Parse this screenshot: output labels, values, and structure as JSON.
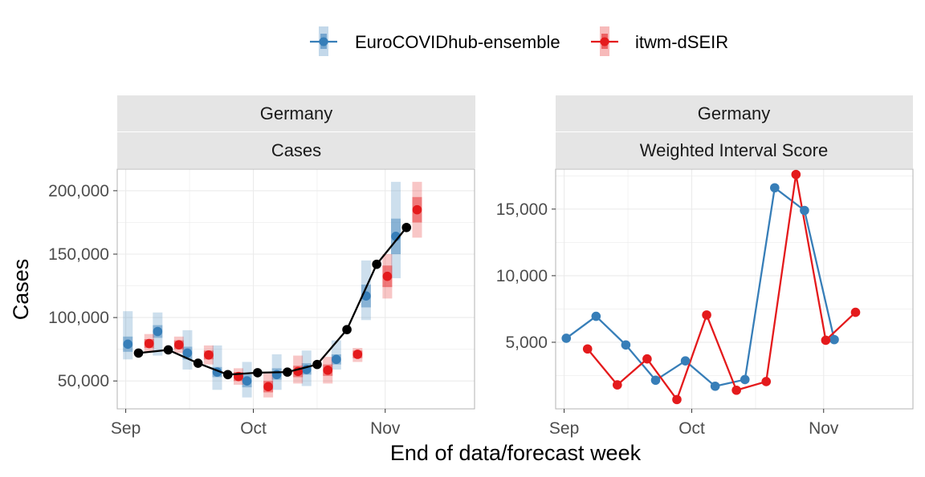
{
  "legend": {
    "items": [
      {
        "label": "EuroCOVIDhub-ensemble",
        "color": "#377eb8"
      },
      {
        "label": "itwm-dSEIR",
        "color": "#e41a1c"
      }
    ]
  },
  "x_axis_title": "End of data/forecast week",
  "chart_data": [
    {
      "type": "line",
      "panel": "left",
      "strip_labels": [
        "Germany",
        "Cases"
      ],
      "ylabel": "Cases",
      "xlabel": "End of data/forecast week",
      "xticks": [
        "Sep",
        "Oct",
        "Nov"
      ],
      "xlim": [
        "2021-08-30",
        "2021-11-22"
      ],
      "ylim": [
        28000,
        217000
      ],
      "yticks": [
        50000,
        100000,
        150000,
        200000
      ],
      "ytick_labels": [
        "50,000",
        "100,000",
        "150,000",
        "200,000"
      ],
      "grid": true,
      "observed": {
        "name": "",
        "color": "#000000",
        "x": [
          "2021-09-04",
          "2021-09-11",
          "2021-09-18",
          "2021-09-25",
          "2021-10-02",
          "2021-10-09",
          "2021-10-16",
          "2021-10-23",
          "2021-10-30",
          "2021-11-06"
        ],
        "values": [
          72000,
          74500,
          64000,
          55000,
          56500,
          57000,
          63000,
          90500,
          142000,
          171000
        ]
      },
      "series": [
        {
          "name": "EuroCOVIDhub-ensemble",
          "color": "#377eb8",
          "x": [
            "2021-09-04",
            "2021-09-11",
            "2021-09-18",
            "2021-09-25",
            "2021-10-02",
            "2021-10-09",
            "2021-10-16",
            "2021-10-23",
            "2021-10-30",
            "2021-11-06"
          ],
          "median": [
            79000,
            89000,
            72000,
            57000,
            50000,
            55000,
            59000,
            67000,
            117000,
            164000
          ],
          "q50": [
            [
              73000,
              85000
            ],
            [
              84000,
              94000
            ],
            [
              67000,
              77000
            ],
            [
              53000,
              61000
            ],
            [
              45000,
              55000
            ],
            [
              51000,
              60000
            ],
            [
              55000,
              64000
            ],
            [
              63000,
              71000
            ],
            [
              108000,
              126000
            ],
            [
              150000,
              178000
            ]
          ],
          "q90": [
            [
              67000,
              105000
            ],
            [
              70000,
              104000
            ],
            [
              59000,
              90000
            ],
            [
              43000,
              78000
            ],
            [
              37000,
              65000
            ],
            [
              43000,
              71000
            ],
            [
              46000,
              74000
            ],
            [
              59000,
              82000
            ],
            [
              98000,
              145000
            ],
            [
              131000,
              207000
            ]
          ]
        },
        {
          "name": "itwm-dSEIR",
          "color": "#e41a1c",
          "x": [
            "2021-09-04",
            "2021-09-11",
            "2021-09-18",
            "2021-09-25",
            "2021-10-02",
            "2021-10-09",
            "2021-10-16",
            "2021-10-23",
            "2021-10-30",
            "2021-11-06"
          ],
          "median": [
            79500,
            78500,
            70500,
            53500,
            45500,
            57500,
            58500,
            71000,
            132500,
            185000
          ],
          "q50": [
            [
              76000,
              83000
            ],
            [
              75000,
              82000
            ],
            [
              67000,
              74000
            ],
            [
              50000,
              57000
            ],
            [
              41000,
              50000
            ],
            [
              53000,
              62000
            ],
            [
              54000,
              63000
            ],
            [
              68000,
              74000
            ],
            [
              124000,
              141000
            ],
            [
              175000,
              195000
            ]
          ],
          "q90": [
            [
              73000,
              87000
            ],
            [
              72000,
              85000
            ],
            [
              63000,
              78000
            ],
            [
              47000,
              60000
            ],
            [
              37000,
              56000
            ],
            [
              48000,
              70000
            ],
            [
              48000,
              69000
            ],
            [
              65000,
              76000
            ],
            [
              115000,
              150000
            ],
            [
              163000,
              207000
            ]
          ]
        }
      ]
    },
    {
      "type": "line",
      "panel": "right",
      "strip_labels": [
        "Germany",
        "Weighted Interval Score"
      ],
      "ylabel": "",
      "xlabel": "End of data/forecast week",
      "xticks": [
        "Sep",
        "Oct",
        "Nov"
      ],
      "xlim": [
        "2021-08-30",
        "2021-11-22"
      ],
      "ylim": [
        0,
        18000
      ],
      "yticks": [
        5000,
        10000,
        15000
      ],
      "ytick_labels": [
        "5,000",
        "10,000",
        "15,000"
      ],
      "grid": true,
      "series": [
        {
          "name": "EuroCOVIDhub-ensemble",
          "color": "#377eb8",
          "x": [
            "2021-09-04",
            "2021-09-11",
            "2021-09-18",
            "2021-09-25",
            "2021-10-02",
            "2021-10-09",
            "2021-10-16",
            "2021-10-23",
            "2021-10-30",
            "2021-11-06"
          ],
          "values": [
            5300,
            6950,
            4800,
            2150,
            3600,
            1700,
            2200,
            16600,
            14900,
            5200
          ]
        },
        {
          "name": "itwm-dSEIR",
          "color": "#e41a1c",
          "x": [
            "2021-09-04",
            "2021-09-11",
            "2021-09-18",
            "2021-09-25",
            "2021-10-02",
            "2021-10-09",
            "2021-10-16",
            "2021-10-23",
            "2021-10-30",
            "2021-11-06"
          ],
          "values": [
            4500,
            1800,
            3750,
            700,
            7050,
            1400,
            2050,
            17600,
            5150,
            7250
          ]
        }
      ]
    }
  ]
}
